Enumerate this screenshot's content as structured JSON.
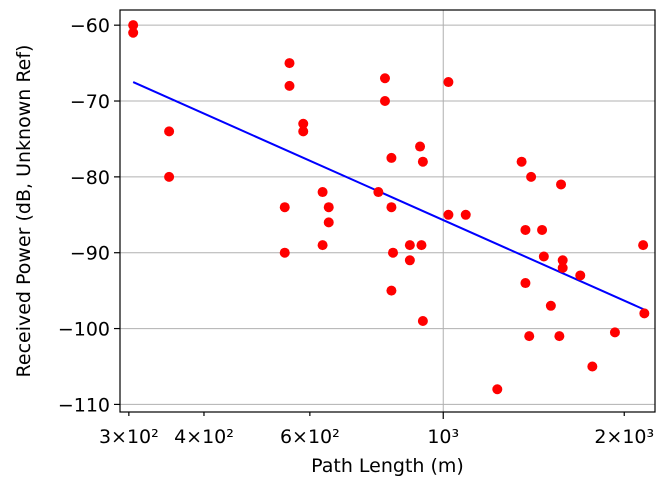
{
  "chart_data": {
    "type": "scatter",
    "title": "",
    "xlabel": "Path Length (m)",
    "ylabel": "Received Power (dB, Unknown Ref)",
    "x_scale": "log",
    "xlim": [
      290,
      2250
    ],
    "ylim": [
      -111,
      -58
    ],
    "grid": true,
    "legend": "none",
    "x_ticks": [
      {
        "value": 300,
        "label": "3×10²"
      },
      {
        "value": 400,
        "label": "4×10²"
      },
      {
        "value": 600,
        "label": "6×10²"
      },
      {
        "value": 1000,
        "label": "10³"
      },
      {
        "value": 2000,
        "label": "2×10³"
      }
    ],
    "y_ticks": [
      {
        "value": -60,
        "label": "−60"
      },
      {
        "value": -70,
        "label": "−70"
      },
      {
        "value": -80,
        "label": "−80"
      },
      {
        "value": -90,
        "label": "−90"
      },
      {
        "value": -100,
        "label": "−100"
      },
      {
        "value": -110,
        "label": "−110"
      }
    ],
    "series": [
      {
        "kind": "scatter",
        "color": "#ff0000",
        "points": [
          [
            305,
            -60
          ],
          [
            305,
            -61
          ],
          [
            350,
            -74
          ],
          [
            350,
            -80
          ],
          [
            545,
            -84
          ],
          [
            545,
            -90
          ],
          [
            555,
            -65
          ],
          [
            555,
            -68
          ],
          [
            585,
            -73
          ],
          [
            585,
            -74
          ],
          [
            630,
            -82
          ],
          [
            630,
            -89
          ],
          [
            645,
            -84
          ],
          [
            645,
            -86
          ],
          [
            780,
            -82
          ],
          [
            800,
            -67
          ],
          [
            800,
            -70
          ],
          [
            820,
            -77.5
          ],
          [
            820,
            -84
          ],
          [
            825,
            -90
          ],
          [
            820,
            -95
          ],
          [
            880,
            -89
          ],
          [
            880,
            -91
          ],
          [
            915,
            -76
          ],
          [
            920,
            -89
          ],
          [
            925,
            -78
          ],
          [
            925,
            -99
          ],
          [
            1020,
            -67.5
          ],
          [
            1020,
            -85
          ],
          [
            1090,
            -85
          ],
          [
            1230,
            -108
          ],
          [
            1350,
            -78
          ],
          [
            1370,
            -87
          ],
          [
            1370,
            -94
          ],
          [
            1400,
            -80
          ],
          [
            1390,
            -101
          ],
          [
            1460,
            -87
          ],
          [
            1470,
            -90.5
          ],
          [
            1510,
            -97
          ],
          [
            1570,
            -81
          ],
          [
            1580,
            -91
          ],
          [
            1580,
            -92
          ],
          [
            1560,
            -101
          ],
          [
            1690,
            -93
          ],
          [
            1770,
            -105
          ],
          [
            1930,
            -100.5
          ],
          [
            2150,
            -89
          ],
          [
            2160,
            -98
          ]
        ]
      },
      {
        "kind": "line",
        "color": "#0000ff",
        "points": [
          [
            305,
            -67.5
          ],
          [
            2160,
            -97.5
          ]
        ]
      }
    ]
  }
}
